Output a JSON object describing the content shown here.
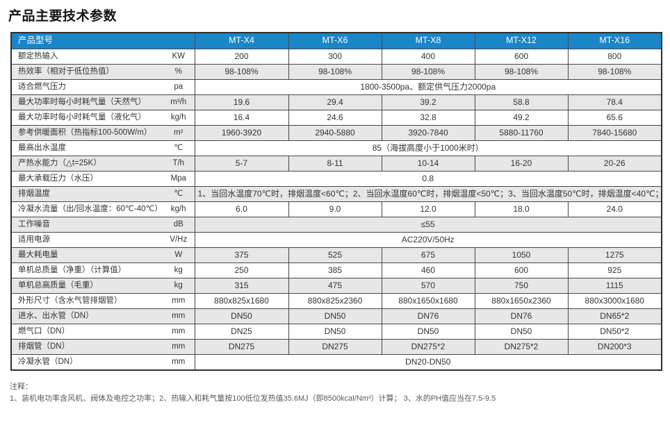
{
  "title": "产品主要技术参数",
  "colors": {
    "header_bg": "#1a86c8",
    "header_fg": "#ffffff",
    "row_alt_bg": "#e7e7e7",
    "border": "#464646"
  },
  "table": {
    "header": {
      "first": "产品型号",
      "models": [
        "MT-X4",
        "MT-X6",
        "MT-X8",
        "MT-X12",
        "MT-X16"
      ]
    },
    "rows": [
      {
        "label": "额定热输入",
        "unit": "KW",
        "values": [
          "200",
          "300",
          "400",
          "600",
          "800"
        ]
      },
      {
        "label": "热效率（相对于低位热值）",
        "unit": "%",
        "values": [
          "98-108%",
          "98-108%",
          "98-108%",
          "98-108%",
          "98-108%"
        ]
      },
      {
        "label": "适合燃气压力",
        "unit": "pa",
        "merged": "1800-3500pa、额定供气压力2000pa"
      },
      {
        "label": "最大功率时每小时耗气量（天然气）",
        "unit": "m³/h",
        "values": [
          "19.6",
          "29.4",
          "39.2",
          "58.8",
          "78.4"
        ]
      },
      {
        "label": "最大功率时每小时耗气量（液化气）",
        "unit": "kg/h",
        "values": [
          "16.4",
          "24.6",
          "32.8",
          "49.2",
          "65.6"
        ]
      },
      {
        "label": "参考供暖面积（热指标100-500W/m）",
        "unit": "m²",
        "values": [
          "1960-3920",
          "2940-5880",
          "3920-7840",
          "5880-11760",
          "7840-15680"
        ]
      },
      {
        "label": "最高出水温度",
        "unit": "℃",
        "merged": "85（海拔高度小于1000米时）"
      },
      {
        "label": "产热水能力（△t=25K）",
        "unit": "T/h",
        "values": [
          "5-7",
          "8-11",
          "10-14",
          "16-20",
          "20-26"
        ]
      },
      {
        "label": "最大承载压力（水压）",
        "unit": "Mpa",
        "merged": "0.8"
      },
      {
        "label": "排烟温度",
        "unit": "℃",
        "merged": "1、当回水温度70℃时，排烟温度<60℃；2、当回水温度60℃时，排烟温度<50℃；3、当回水温度50℃时，排烟温度<40℃；"
      },
      {
        "label": "冷凝水流量（出/回水温度：60℃-40℃）",
        "unit": "kg/h",
        "values": [
          "6.0",
          "9.0",
          "12.0",
          "18.0",
          "24.0"
        ]
      },
      {
        "label": "工作噪音",
        "unit": "dB",
        "merged": "≤55"
      },
      {
        "label": "适用电源",
        "unit": "V/Hz",
        "merged": "AC220V/50Hz"
      },
      {
        "label": "最大耗电量",
        "unit": "W",
        "values": [
          "375",
          "525",
          "675",
          "1050",
          "1275"
        ]
      },
      {
        "label": "单机总质量（净重）（计算值）",
        "unit": "kg",
        "values": [
          "250",
          "385",
          "460",
          "600",
          "925"
        ]
      },
      {
        "label": "单机总高质量（毛重）",
        "unit": "kg",
        "values": [
          "315",
          "475",
          "570",
          "750",
          "1115"
        ]
      },
      {
        "label": "外形尺寸（含水气管排烟管）",
        "unit": "mm",
        "values": [
          "880x825x1680",
          "880x825x2360",
          "880x1650x1680",
          "880x1650x2360",
          "880x3000x1680"
        ]
      },
      {
        "label": "进水、出水管（DN）",
        "unit": "mm",
        "values": [
          "DN50",
          "DN50",
          "DN76",
          "DN76",
          "DN65*2"
        ]
      },
      {
        "label": "燃气口（DN）",
        "unit": "mm",
        "values": [
          "DN25",
          "DN50",
          "DN50",
          "DN50",
          "DN50*2"
        ]
      },
      {
        "label": "排烟管（DN）",
        "unit": "mm",
        "values": [
          "DN275",
          "DN275",
          "DN275*2",
          "DN275*2",
          "DN200*3"
        ]
      },
      {
        "label": "冷凝水管（DN）",
        "unit": "mm",
        "merged": "DN20-DN50"
      }
    ]
  },
  "notes": {
    "heading": "注释：",
    "items": [
      "1、装机电功率含风机、阀体及电控之功率；2、热输入和耗气量按100低位发热值35.6MJ（即8500kcal/Nm³）计算；  3、水的PH值应当在7.5-9.5"
    ]
  }
}
